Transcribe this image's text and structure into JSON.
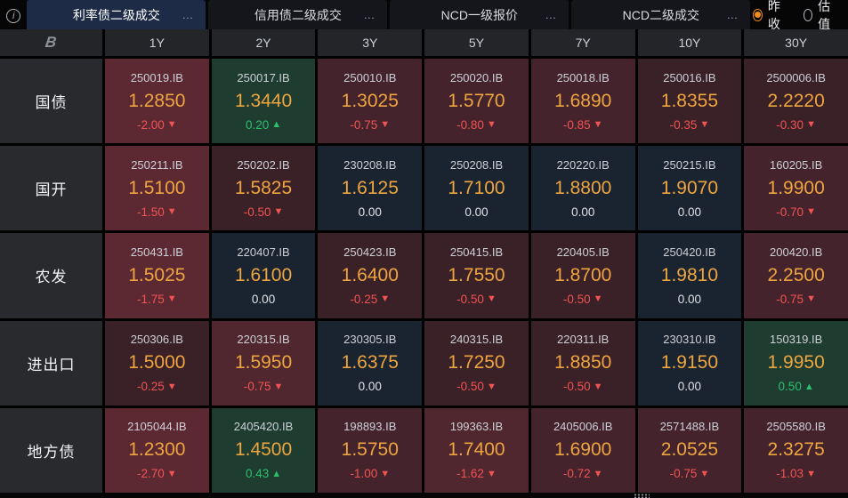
{
  "topbar": {
    "info_glyph": "i",
    "ellipsis_glyph": "…",
    "tabs": [
      {
        "name": "tab-rates-bond-secondary-trades",
        "label": "利率债二级成交",
        "active": true
      },
      {
        "name": "tab-credit-bond-secondary-trades",
        "label": "信用债二级成交",
        "active": false
      },
      {
        "name": "tab-ncd-primary-quotes",
        "label": "NCD一级报价",
        "active": false
      },
      {
        "name": "tab-ncd-secondary-trades",
        "label": "NCD二级成交",
        "active": false
      }
    ],
    "radios": [
      {
        "name": "radio-prev-close",
        "label": "昨收",
        "selected": true
      },
      {
        "name": "radio-valuation",
        "label": "估值",
        "selected": false
      }
    ]
  },
  "glyphs": {
    "down": "▼",
    "up": "▲",
    "logo": "B"
  },
  "colors": {
    "tab_active_bg": "#1d2b47",
    "rate_text": "#eda53f",
    "down_text": "#f25353",
    "up_text": "#2cc06c",
    "flat_text": "#e0e3e8",
    "bg_r4": "#5c2933",
    "bg_r3": "#50262f",
    "bg_r2": "#44232c",
    "bg_r1": "#3a2027",
    "bg_up": "#1e3c30",
    "bg_flat": "#1a2330"
  },
  "grid": {
    "columns": [
      "1Y",
      "2Y",
      "3Y",
      "5Y",
      "7Y",
      "10Y",
      "30Y"
    ],
    "rows": [
      {
        "label": "国债",
        "cells": [
          {
            "code": "250019.IB",
            "rate": "1.2850",
            "chg": "-2.00",
            "dir": "down",
            "tier": "r4"
          },
          {
            "code": "250017.IB",
            "rate": "1.3440",
            "chg": "0.20",
            "dir": "up",
            "tier": "up"
          },
          {
            "code": "250010.IB",
            "rate": "1.3025",
            "chg": "-0.75",
            "dir": "down",
            "tier": "r2"
          },
          {
            "code": "250020.IB",
            "rate": "1.5770",
            "chg": "-0.80",
            "dir": "down",
            "tier": "r2"
          },
          {
            "code": "250018.IB",
            "rate": "1.6890",
            "chg": "-0.85",
            "dir": "down",
            "tier": "r2"
          },
          {
            "code": "250016.IB",
            "rate": "1.8355",
            "chg": "-0.35",
            "dir": "down",
            "tier": "r1"
          },
          {
            "code": "2500006.IB",
            "rate": "2.2220",
            "chg": "-0.30",
            "dir": "down",
            "tier": "r1"
          }
        ]
      },
      {
        "label": "国开",
        "cells": [
          {
            "code": "250211.IB",
            "rate": "1.5100",
            "chg": "-1.50",
            "dir": "down",
            "tier": "r4"
          },
          {
            "code": "250202.IB",
            "rate": "1.5825",
            "chg": "-0.50",
            "dir": "down",
            "tier": "r1"
          },
          {
            "code": "230208.IB",
            "rate": "1.6125",
            "chg": "0.00",
            "dir": "flat",
            "tier": "flat"
          },
          {
            "code": "250208.IB",
            "rate": "1.7100",
            "chg": "0.00",
            "dir": "flat",
            "tier": "flat"
          },
          {
            "code": "220220.IB",
            "rate": "1.8800",
            "chg": "0.00",
            "dir": "flat",
            "tier": "flat"
          },
          {
            "code": "250215.IB",
            "rate": "1.9070",
            "chg": "0.00",
            "dir": "flat",
            "tier": "flat"
          },
          {
            "code": "160205.IB",
            "rate": "1.9900",
            "chg": "-0.70",
            "dir": "down",
            "tier": "r2"
          }
        ]
      },
      {
        "label": "农发",
        "cells": [
          {
            "code": "250431.IB",
            "rate": "1.5025",
            "chg": "-1.75",
            "dir": "down",
            "tier": "r4"
          },
          {
            "code": "220407.IB",
            "rate": "1.6100",
            "chg": "0.00",
            "dir": "flat",
            "tier": "flat"
          },
          {
            "code": "250423.IB",
            "rate": "1.6400",
            "chg": "-0.25",
            "dir": "down",
            "tier": "r1"
          },
          {
            "code": "250415.IB",
            "rate": "1.7550",
            "chg": "-0.50",
            "dir": "down",
            "tier": "r1"
          },
          {
            "code": "220405.IB",
            "rate": "1.8700",
            "chg": "-0.50",
            "dir": "down",
            "tier": "r1"
          },
          {
            "code": "250420.IB",
            "rate": "1.9810",
            "chg": "0.00",
            "dir": "flat",
            "tier": "flat"
          },
          {
            "code": "200420.IB",
            "rate": "2.2500",
            "chg": "-0.75",
            "dir": "down",
            "tier": "r2"
          }
        ]
      },
      {
        "label": "进出口",
        "cells": [
          {
            "code": "250306.IB",
            "rate": "1.5000",
            "chg": "-0.25",
            "dir": "down",
            "tier": "r1"
          },
          {
            "code": "220315.IB",
            "rate": "1.5950",
            "chg": "-0.75",
            "dir": "down",
            "tier": "r3"
          },
          {
            "code": "230305.IB",
            "rate": "1.6375",
            "chg": "0.00",
            "dir": "flat",
            "tier": "flat"
          },
          {
            "code": "240315.IB",
            "rate": "1.7250",
            "chg": "-0.50",
            "dir": "down",
            "tier": "r1"
          },
          {
            "code": "220311.IB",
            "rate": "1.8850",
            "chg": "-0.50",
            "dir": "down",
            "tier": "r1"
          },
          {
            "code": "230310.IB",
            "rate": "1.9150",
            "chg": "0.00",
            "dir": "flat",
            "tier": "flat"
          },
          {
            "code": "150319.IB",
            "rate": "1.9950",
            "chg": "0.50",
            "dir": "up",
            "tier": "up"
          }
        ]
      },
      {
        "label": "地方债",
        "cells": [
          {
            "code": "2105044.IB",
            "rate": "1.2300",
            "chg": "-2.70",
            "dir": "down",
            "tier": "r4"
          },
          {
            "code": "2405420.IB",
            "rate": "1.4500",
            "chg": "0.43",
            "dir": "up",
            "tier": "up"
          },
          {
            "code": "198893.IB",
            "rate": "1.5750",
            "chg": "-1.00",
            "dir": "down",
            "tier": "r2"
          },
          {
            "code": "199363.IB",
            "rate": "1.7400",
            "chg": "-1.62",
            "dir": "down",
            "tier": "r3"
          },
          {
            "code": "2405006.IB",
            "rate": "1.6900",
            "chg": "-0.72",
            "dir": "down",
            "tier": "r2"
          },
          {
            "code": "2571488.IB",
            "rate": "2.0525",
            "chg": "-0.75",
            "dir": "down",
            "tier": "r2"
          },
          {
            "code": "2505580.IB",
            "rate": "2.3275",
            "chg": "-1.03",
            "dir": "down",
            "tier": "r2"
          }
        ]
      }
    ]
  }
}
